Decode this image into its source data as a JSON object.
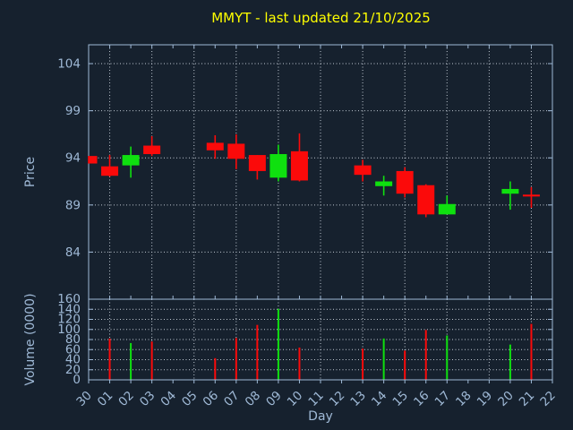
{
  "title": "MMYT - last updated 21/10/2025",
  "colors": {
    "background": "#16212e",
    "axis": "#9fb9d6",
    "grid": "#c2cad4",
    "title": "#ffff00",
    "up": "#0fe00f",
    "down": "#fb0a0a"
  },
  "chart_data": {
    "type": "candlestick_with_volume",
    "title": "MMYT - last updated 21/10/2025",
    "xlabel": "Day",
    "price_ylabel": "Price",
    "volume_ylabel": "Volume (0000)",
    "days": [
      "30",
      "01",
      "02",
      "03",
      "04",
      "05",
      "06",
      "07",
      "08",
      "09",
      "10",
      "11",
      "12",
      "13",
      "14",
      "15",
      "16",
      "17",
      "18",
      "19",
      "20",
      "21",
      "22"
    ],
    "price_yticks": [
      84,
      89,
      94,
      99,
      104
    ],
    "price_ylim": [
      79,
      106
    ],
    "volume_yticks": [
      0,
      20,
      40,
      60,
      80,
      100,
      120,
      140,
      160
    ],
    "volume_ylim": [
      0,
      160
    ],
    "grid": true,
    "grid_style": "dotted",
    "vertical_grid_days": [
      "01",
      "03",
      "05",
      "07",
      "09",
      "11",
      "13",
      "15",
      "17",
      "19",
      "21"
    ],
    "ohlc": [
      {
        "day": "30",
        "open": 94.2,
        "high": 94.2,
        "low": 93.4,
        "close": 93.4,
        "volume": 0
      },
      {
        "day": "01",
        "open": 93.1,
        "high": 94.3,
        "low": 92.0,
        "close": 92.1,
        "volume": 82
      },
      {
        "day": "02",
        "open": 93.2,
        "high": 95.2,
        "low": 91.9,
        "close": 94.3,
        "volume": 73
      },
      {
        "day": "03",
        "open": 95.3,
        "high": 96.3,
        "low": 94.2,
        "close": 94.4,
        "volume": 76
      },
      {
        "day": "06",
        "open": 95.6,
        "high": 96.4,
        "low": 93.9,
        "close": 94.8,
        "volume": 43
      },
      {
        "day": "07",
        "open": 95.5,
        "high": 96.5,
        "low": 92.8,
        "close": 93.9,
        "volume": 83
      },
      {
        "day": "08",
        "open": 94.3,
        "high": 94.3,
        "low": 91.7,
        "close": 92.6,
        "volume": 109
      },
      {
        "day": "09",
        "open": 91.9,
        "high": 95.4,
        "low": 91.5,
        "close": 94.4,
        "volume": 141
      },
      {
        "day": "10",
        "open": 94.7,
        "high": 96.6,
        "low": 91.5,
        "close": 91.6,
        "volume": 64
      },
      {
        "day": "13",
        "open": 93.2,
        "high": 93.8,
        "low": 91.5,
        "close": 92.2,
        "volume": 62
      },
      {
        "day": "14",
        "open": 91.0,
        "high": 92.1,
        "low": 90.0,
        "close": 91.5,
        "volume": 82
      },
      {
        "day": "15",
        "open": 92.6,
        "high": 93.0,
        "low": 89.8,
        "close": 90.2,
        "volume": 58
      },
      {
        "day": "16",
        "open": 91.1,
        "high": 91.2,
        "low": 87.7,
        "close": 88.0,
        "volume": 99
      },
      {
        "day": "17",
        "open": 88.0,
        "high": 90.0,
        "low": 88.0,
        "close": 89.1,
        "volume": 88
      },
      {
        "day": "20",
        "open": 90.2,
        "high": 91.5,
        "low": 88.5,
        "close": 90.7,
        "volume": 70
      },
      {
        "day": "21",
        "open": 90.1,
        "high": 90.9,
        "low": 88.7,
        "close": 89.9,
        "volume": 111
      }
    ]
  }
}
